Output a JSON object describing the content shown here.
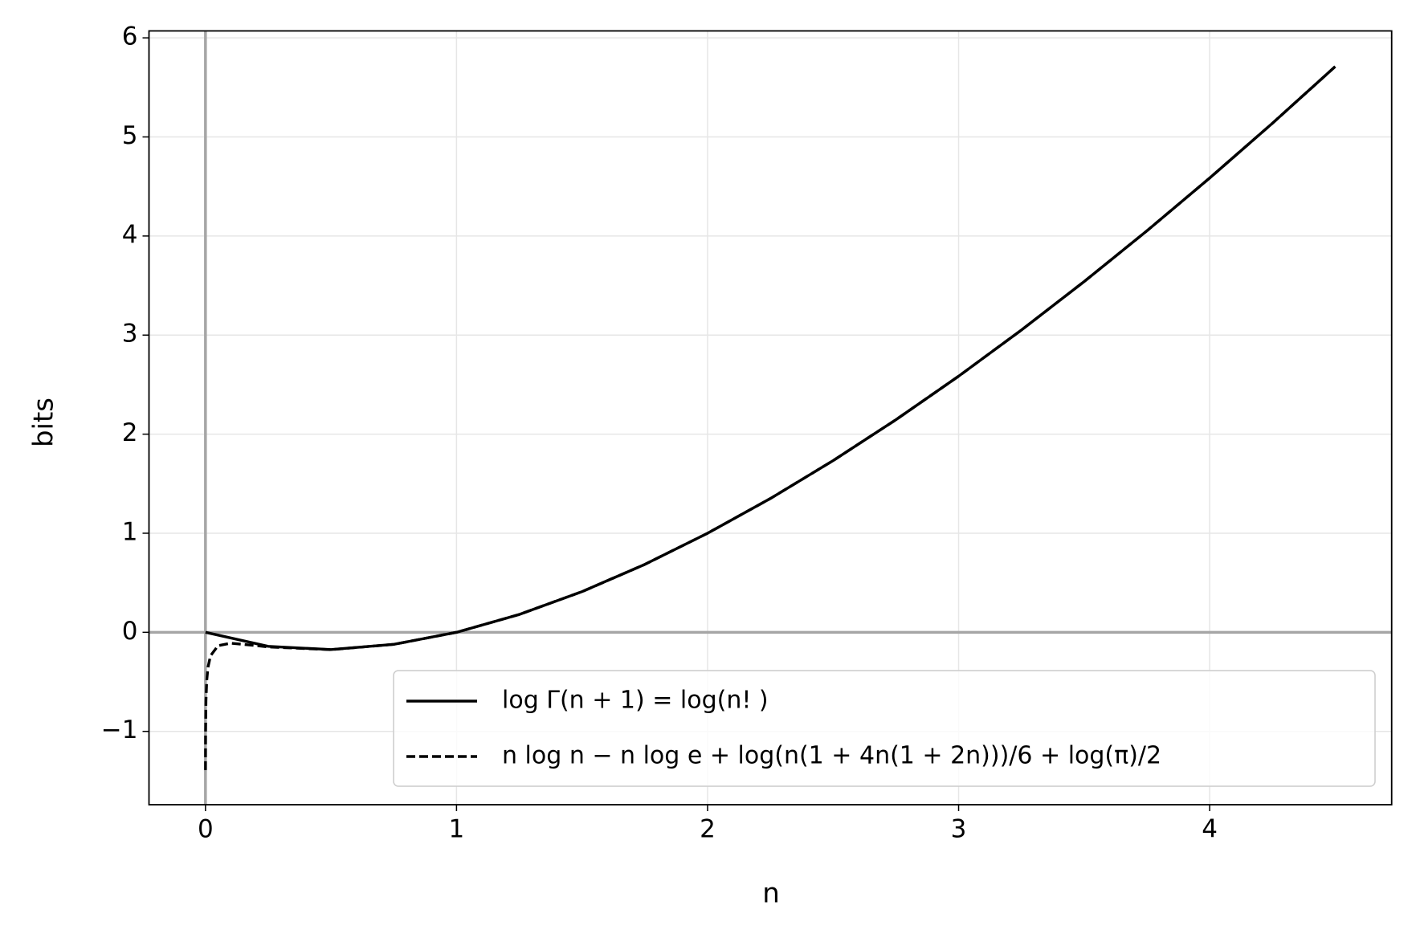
{
  "chart_data": {
    "type": "line",
    "xlabel": "n",
    "ylabel": "bits",
    "xlim": [
      -0.225,
      4.725
    ],
    "ylim": [
      -1.74,
      6.07
    ],
    "xticks": [
      0,
      1,
      2,
      3,
      4
    ],
    "yticks": [
      {
        "value": -1,
        "label": "−1"
      },
      0,
      1,
      2,
      3,
      4,
      5,
      6
    ],
    "grid": true,
    "hlines": [
      0
    ],
    "vlines": [
      0
    ],
    "legend": "lower right",
    "series": [
      {
        "name": "log Γ(n + 1)  =  log(n! )",
        "color": "#000000",
        "dash": false,
        "x": [
          0,
          0.25,
          0.5,
          0.75,
          1,
          1.25,
          1.5,
          1.75,
          2,
          2.25,
          2.5,
          2.75,
          3,
          3.25,
          3.5,
          3.75,
          4,
          4.25,
          4.5
        ],
        "values": [
          0,
          -0.1418,
          -0.1743,
          -0.1217,
          0,
          0.1802,
          0.4107,
          0.6856,
          1,
          1.3501,
          1.7327,
          2.1452,
          2.585,
          3.0506,
          3.5402,
          4.0522,
          4.585,
          5.1381,
          5.71
        ]
      },
      {
        "name": "n log n − n log e + log(n(1 + 4n(1 + 2n)))/6 + log(π)/2",
        "color": "#000000",
        "dash": true,
        "x": [
          0.0001,
          0.0005,
          0.002,
          0.005,
          0.01,
          0.02,
          0.05,
          0.1,
          0.2,
          0.25,
          0.5,
          0.75,
          1,
          1.25,
          1.5,
          1.75,
          2,
          2.25,
          2.5,
          2.75,
          3,
          3.25,
          3.5,
          3.75,
          4,
          4.25,
          4.5
        ],
        "values": [
          -1.3902,
          -1.0076,
          -0.6874,
          -0.4888,
          -0.3528,
          -0.2374,
          -0.1349,
          -0.1101,
          -0.1335,
          -0.1479,
          -0.1752,
          -0.1217,
          0,
          0.1802,
          0.4107,
          0.6856,
          1,
          1.3501,
          1.7327,
          2.1452,
          2.585,
          3.0506,
          3.5402,
          4.0522,
          4.585,
          5.1381,
          5.71
        ]
      }
    ]
  }
}
